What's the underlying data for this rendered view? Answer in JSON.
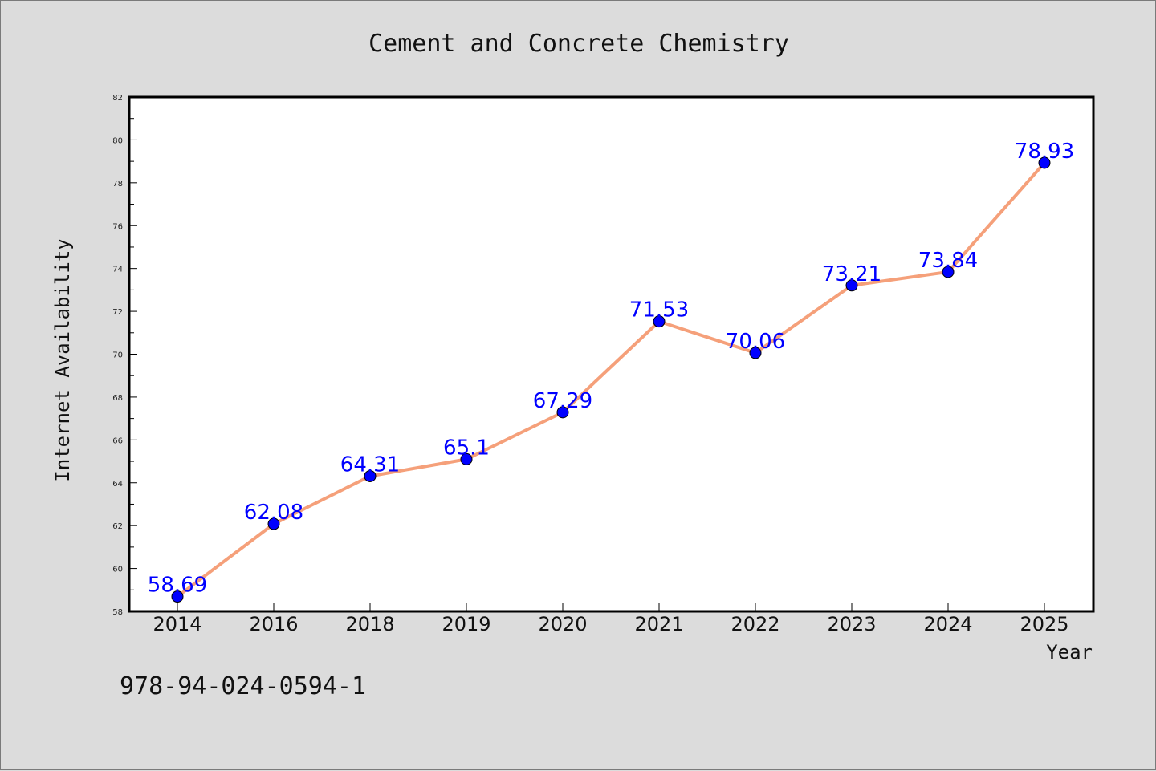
{
  "chart_data": {
    "type": "line",
    "title": "Cement and Concrete Chemistry",
    "xlabel": "Year",
    "ylabel": "Internet Availability",
    "categories": [
      "2014",
      "2016",
      "2018",
      "2019",
      "2020",
      "2021",
      "2022",
      "2023",
      "2024",
      "2025"
    ],
    "series": [
      {
        "values": [
          58.69,
          62.08,
          64.31,
          65.1,
          67.29,
          71.53,
          70.06,
          73.21,
          73.84,
          78.93
        ],
        "labels": [
          "58.69",
          "62.08",
          "64.31",
          "65.1",
          "67.29",
          "71.53",
          "70.06",
          "73.21",
          "73.84",
          "78.93"
        ]
      }
    ],
    "ylim": [
      58,
      82
    ],
    "yticks": [
      58,
      60,
      62,
      64,
      66,
      68,
      70,
      72,
      74,
      76,
      78,
      80,
      82
    ],
    "grid": false,
    "legend": "none",
    "line_color": "#f5a07a",
    "marker_color": "#0000ff",
    "label_color": "#0000ff",
    "plot_background": "#ffffff",
    "figure_background": "#dcdcdc"
  },
  "footer": {
    "isbn": "978-94-024-0594-1"
  }
}
